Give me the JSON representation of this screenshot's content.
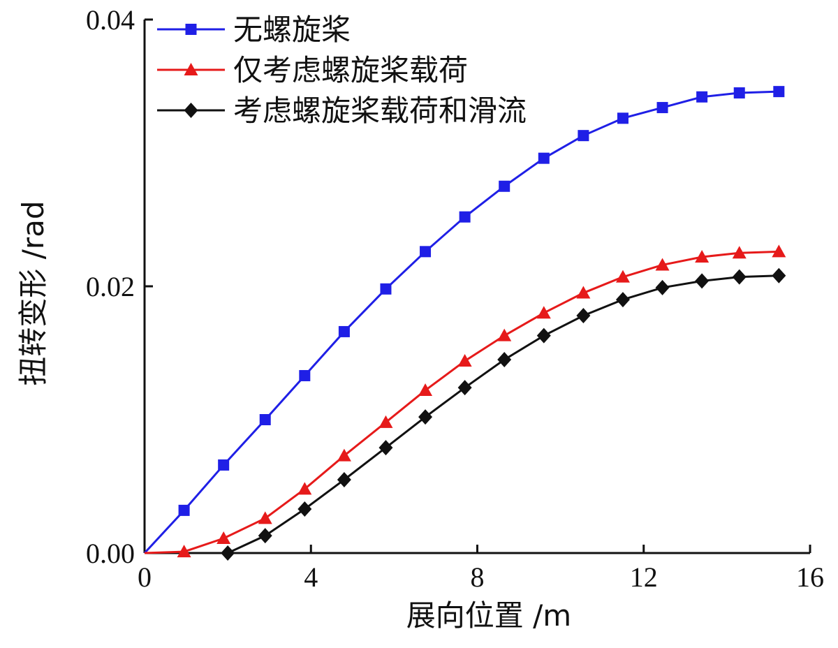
{
  "chart_data": {
    "type": "line",
    "xlabel": "展向位置 /m",
    "ylabel": "扭转变形 /rad",
    "xlim": [
      0,
      16
    ],
    "ylim": [
      0,
      0.04
    ],
    "x_ticks": [
      0,
      4,
      8,
      12,
      16
    ],
    "x_tick_labels": [
      "0",
      "4",
      "8",
      "12",
      "16"
    ],
    "y_ticks": [
      0,
      0.02,
      0.04
    ],
    "y_tick_labels": [
      "0.00",
      "0.02",
      "0.04"
    ],
    "grid": false,
    "legend_position": "top-left",
    "series": [
      {
        "name": "无螺旋桨",
        "color": "#1f1fe6",
        "marker": "square",
        "x": [
          0,
          0.95,
          1.9,
          2.9,
          3.85,
          4.8,
          5.8,
          6.75,
          7.7,
          8.65,
          9.6,
          10.55,
          11.5,
          12.45,
          13.4,
          14.3,
          15.25
        ],
        "y": [
          0,
          0.0032,
          0.0066,
          0.01,
          0.0133,
          0.0166,
          0.0198,
          0.0226,
          0.0252,
          0.0275,
          0.0296,
          0.0313,
          0.0326,
          0.0334,
          0.0342,
          0.0345,
          0.0346
        ]
      },
      {
        "name": "仅考虑螺旋桨载荷",
        "color": "#e61a1a",
        "marker": "triangle",
        "x": [
          0,
          0.95,
          1.9,
          2.9,
          3.85,
          4.8,
          5.8,
          6.75,
          7.7,
          8.65,
          9.6,
          10.55,
          11.5,
          12.45,
          13.4,
          14.3,
          15.25
        ],
        "y": [
          0,
          0.0001,
          0.0011,
          0.0026,
          0.0048,
          0.0073,
          0.0098,
          0.0122,
          0.0144,
          0.0163,
          0.018,
          0.0195,
          0.0207,
          0.0216,
          0.0222,
          0.0225,
          0.0226
        ]
      },
      {
        "name": "考虑螺旋桨载荷和滑流",
        "color": "#111111",
        "marker": "diamond",
        "x": [
          2.0,
          2.9,
          3.85,
          4.8,
          5.8,
          6.75,
          7.7,
          8.65,
          9.6,
          10.55,
          11.5,
          12.45,
          13.4,
          14.3,
          15.25
        ],
        "y": [
          0,
          0.0013,
          0.0033,
          0.0055,
          0.0079,
          0.0102,
          0.0124,
          0.0145,
          0.0163,
          0.0178,
          0.019,
          0.0199,
          0.0204,
          0.0207,
          0.0208
        ]
      }
    ]
  }
}
